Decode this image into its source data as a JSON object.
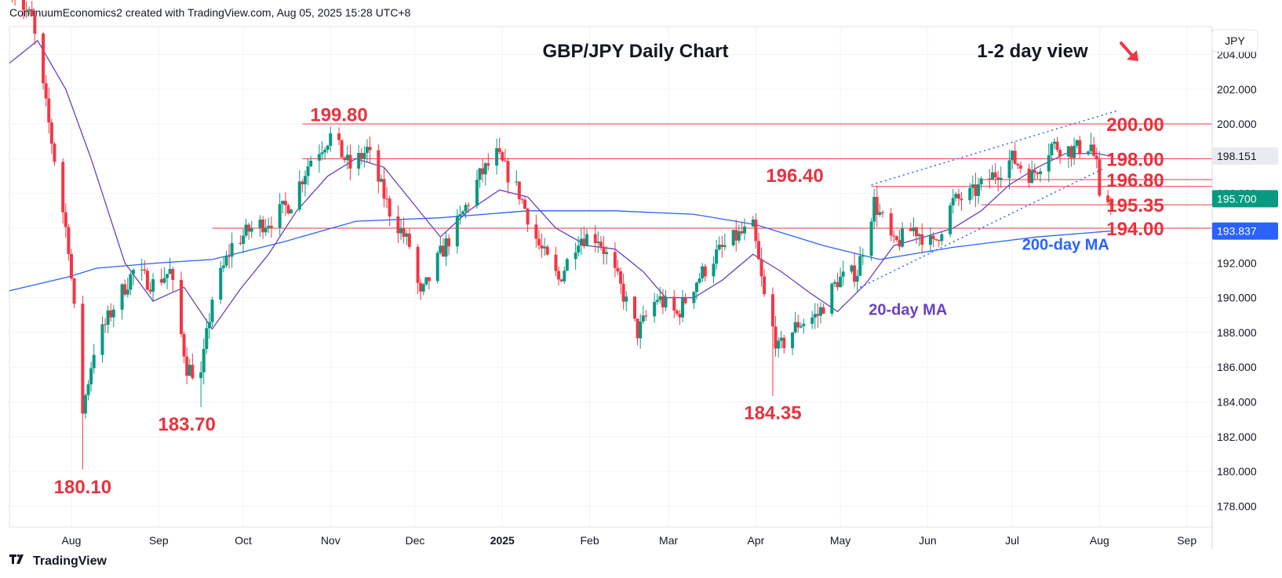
{
  "header": {
    "attribution": "ContinuumEconomics2 created with TradingView.com, Aug 05, 2025 15:28 UTC+8"
  },
  "footer": {
    "brand": "TradingView"
  },
  "colors": {
    "bull": "#089981",
    "bear": "#f23645",
    "ma20": "#6a3fc7",
    "ma200": "#2962ff",
    "level": "#f23645",
    "text_red": "#e8323f",
    "grid": "#f0f3fa"
  },
  "chart_data": {
    "type": "candlestick",
    "title": "GBP/JPY Daily Chart",
    "subtitle": "1-2 day view",
    "currency": "JPY",
    "x_axis": {
      "tick_labels": [
        "Aug",
        "Sep",
        "Oct",
        "Nov",
        "Dec",
        "2025",
        "Feb",
        "Mar",
        "Apr",
        "May",
        "Jun",
        "Jul",
        "Aug",
        "Sep"
      ],
      "range": [
        "2024-07-10",
        "2025-09-10"
      ]
    },
    "y_axis": {
      "tick_labels": [
        "178.000",
        "180.000",
        "182.000",
        "184.000",
        "186.000",
        "188.000",
        "190.000",
        "192.000",
        "194.000",
        "196.000",
        "198.000",
        "200.000",
        "202.000",
        "204.000"
      ],
      "range": [
        176.8,
        205.6
      ]
    },
    "price_tags": [
      {
        "label": "198.151",
        "value": 198.151,
        "color": "#e9ebf0",
        "text_color": "#131722"
      },
      {
        "label": "195.700",
        "value": 195.7,
        "color": "#089981",
        "text_color": "#ffffff"
      },
      {
        "label": "193.837",
        "value": 193.837,
        "color": "#2962ff",
        "text_color": "#ffffff"
      }
    ],
    "levels": [
      {
        "label": "200.00",
        "value": 200.0,
        "from": "2024-10-22"
      },
      {
        "label": "198.00",
        "value": 198.0,
        "from": "2024-10-22"
      },
      {
        "label": "196.80",
        "value": 196.8,
        "from": "2025-06-20"
      },
      {
        "label": "196.40",
        "value": 196.4,
        "from": "2025-05-12"
      },
      {
        "label": "195.35",
        "value": 195.35,
        "from": "2025-06-20"
      },
      {
        "label": "194.00",
        "value": 194.0,
        "from": "2024-09-20"
      }
    ],
    "annotations": [
      {
        "text": "199.80",
        "date": "2024-11-04",
        "value": 199.8
      },
      {
        "text": "180.10",
        "date": "2024-08-05",
        "value": 180.1
      },
      {
        "text": "183.70",
        "date": "2024-09-11",
        "value": 183.7
      },
      {
        "text": "184.35",
        "date": "2025-04-07",
        "value": 184.35
      },
      {
        "text": "20-day MA",
        "date": "2025-05-25",
        "value": 189.0
      },
      {
        "text": "200-day MA",
        "date": "2025-07-20",
        "value": 192.75
      }
    ],
    "channel": {
      "upper": [
        [
          "2025-05-12",
          196.5
        ],
        [
          "2025-08-08",
          200.8
        ]
      ],
      "lower": [
        [
          "2025-05-08",
          190.6
        ],
        [
          "2025-08-02",
          197.4
        ]
      ]
    },
    "path": [
      [
        "2024-07-10",
        208.0
      ],
      [
        "2024-07-18",
        206.0
      ],
      [
        "2024-07-25",
        199.0
      ],
      [
        "2024-07-31",
        193.0
      ],
      [
        "2024-08-05",
        183.5
      ],
      [
        "2024-08-09",
        187.0
      ],
      [
        "2024-08-16",
        189.5
      ],
      [
        "2024-08-23",
        191.5
      ],
      [
        "2024-08-30",
        190.8
      ],
      [
        "2024-09-05",
        191.5
      ],
      [
        "2024-09-11",
        186.0
      ],
      [
        "2024-09-16",
        185.5
      ],
      [
        "2024-09-20",
        190.0
      ],
      [
        "2024-09-27",
        193.0
      ],
      [
        "2024-10-04",
        194.0
      ],
      [
        "2024-10-11",
        194.5
      ],
      [
        "2024-10-18",
        195.5
      ],
      [
        "2024-10-25",
        198.0
      ],
      [
        "2024-11-01",
        199.3
      ],
      [
        "2024-11-08",
        197.5
      ],
      [
        "2024-11-14",
        198.5
      ],
      [
        "2024-11-22",
        195.0
      ],
      [
        "2024-11-29",
        193.0
      ],
      [
        "2024-12-03",
        190.0
      ],
      [
        "2024-12-10",
        192.5
      ],
      [
        "2024-12-17",
        194.5
      ],
      [
        "2024-12-24",
        197.0
      ],
      [
        "2024-12-30",
        198.2
      ],
      [
        "2025-01-07",
        196.0
      ],
      [
        "2025-01-14",
        193.0
      ],
      [
        "2025-01-21",
        191.0
      ],
      [
        "2025-01-28",
        193.5
      ],
      [
        "2025-02-04",
        193.5
      ],
      [
        "2025-02-11",
        191.0
      ],
      [
        "2025-02-18",
        188.0
      ],
      [
        "2025-02-25",
        190.0
      ],
      [
        "2025-03-04",
        189.0
      ],
      [
        "2025-03-11",
        191.0
      ],
      [
        "2025-03-18",
        192.5
      ],
      [
        "2025-03-25",
        193.5
      ],
      [
        "2025-03-31",
        194.0
      ],
      [
        "2025-04-04",
        190.0
      ],
      [
        "2025-04-09",
        187.0
      ],
      [
        "2025-04-16",
        188.5
      ],
      [
        "2025-04-23",
        189.0
      ],
      [
        "2025-04-30",
        191.0
      ],
      [
        "2025-05-07",
        191.5
      ],
      [
        "2025-05-13",
        195.5
      ],
      [
        "2025-05-20",
        193.0
      ],
      [
        "2025-05-27",
        194.0
      ],
      [
        "2025-06-03",
        193.0
      ],
      [
        "2025-06-10",
        195.5
      ],
      [
        "2025-06-17",
        196.0
      ],
      [
        "2025-06-24",
        197.0
      ],
      [
        "2025-07-01",
        198.0
      ],
      [
        "2025-07-08",
        197.0
      ],
      [
        "2025-07-15",
        198.8
      ],
      [
        "2025-07-22",
        198.5
      ],
      [
        "2025-07-29",
        198.8
      ],
      [
        "2025-07-31",
        197.5
      ],
      [
        "2025-08-01",
        195.4
      ],
      [
        "2025-08-05",
        195.7
      ]
    ],
    "extremes": [
      [
        "2024-08-05",
        180.1
      ],
      [
        "2024-09-16",
        183.7
      ],
      [
        "2025-04-07",
        184.35
      ],
      [
        "2024-11-04",
        199.8
      ],
      [
        "2025-07-20",
        199.9
      ]
    ],
    "ma20": [
      [
        "2024-07-10",
        203.5
      ],
      [
        "2024-07-20",
        204.8
      ],
      [
        "2024-07-30",
        202.0
      ],
      [
        "2024-08-08",
        198.0
      ],
      [
        "2024-08-20",
        192.0
      ],
      [
        "2024-08-30",
        189.8
      ],
      [
        "2024-09-10",
        190.6
      ],
      [
        "2024-09-20",
        188.2
      ],
      [
        "2024-09-30",
        190.5
      ],
      [
        "2024-10-10",
        192.5
      ],
      [
        "2024-10-20",
        195.0
      ],
      [
        "2024-10-31",
        197.0
      ],
      [
        "2024-11-10",
        198.0
      ],
      [
        "2024-11-20",
        197.5
      ],
      [
        "2024-11-30",
        195.5
      ],
      [
        "2024-12-10",
        193.5
      ],
      [
        "2024-12-20",
        195.0
      ],
      [
        "2024-12-31",
        196.2
      ],
      [
        "2025-01-10",
        195.8
      ],
      [
        "2025-01-20",
        194.0
      ],
      [
        "2025-01-31",
        193.0
      ],
      [
        "2025-02-10",
        192.8
      ],
      [
        "2025-02-20",
        191.5
      ],
      [
        "2025-02-28",
        190.0
      ],
      [
        "2025-03-10",
        190.0
      ],
      [
        "2025-03-20",
        191.0
      ],
      [
        "2025-03-31",
        192.5
      ],
      [
        "2025-04-10",
        191.5
      ],
      [
        "2025-04-20",
        190.3
      ],
      [
        "2025-04-30",
        189.2
      ],
      [
        "2025-05-10",
        190.8
      ],
      [
        "2025-05-20",
        193.0
      ],
      [
        "2025-05-31",
        193.5
      ],
      [
        "2025-06-10",
        194.0
      ],
      [
        "2025-06-20",
        195.0
      ],
      [
        "2025-06-30",
        196.5
      ],
      [
        "2025-07-10",
        197.5
      ],
      [
        "2025-07-20",
        198.3
      ],
      [
        "2025-07-31",
        198.3
      ],
      [
        "2025-08-05",
        198.151
      ]
    ],
    "ma200": [
      [
        "2024-07-10",
        190.4
      ],
      [
        "2024-07-31",
        191.2
      ],
      [
        "2024-08-10",
        191.7
      ],
      [
        "2024-09-01",
        192.0
      ],
      [
        "2024-09-20",
        192.2
      ],
      [
        "2024-10-15",
        193.2
      ],
      [
        "2024-11-10",
        194.4
      ],
      [
        "2024-12-10",
        194.6
      ],
      [
        "2025-01-10",
        195.0
      ],
      [
        "2025-02-10",
        195.0
      ],
      [
        "2025-03-10",
        194.8
      ],
      [
        "2025-04-01",
        194.2
      ],
      [
        "2025-04-25",
        193.0
      ],
      [
        "2025-05-15",
        192.2
      ],
      [
        "2025-06-10",
        192.9
      ],
      [
        "2025-07-10",
        193.5
      ],
      [
        "2025-08-05",
        193.837
      ]
    ]
  }
}
